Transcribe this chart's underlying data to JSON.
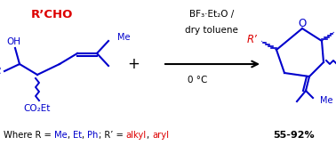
{
  "bg_color": "#ffffff",
  "fig_width": 3.78,
  "fig_height": 1.63,
  "dpi": 100,
  "color_blue": "#0000cc",
  "color_red": "#dd0000",
  "color_black": "#000000",
  "reagent_line1": "BF₃·Et₂O /",
  "reagent_line2": "dry toluene",
  "reagent_line3": "0 °C",
  "aldehyde_label": "R’CHO",
  "yield_text": "55-92%",
  "bottom_text_parts": [
    {
      "text": "Where R = ",
      "color": "black"
    },
    {
      "text": "Me",
      "color": "blue"
    },
    {
      "text": ", ",
      "color": "black"
    },
    {
      "text": "Et",
      "color": "blue"
    },
    {
      "text": ", ",
      "color": "black"
    },
    {
      "text": "Ph",
      "color": "blue"
    },
    {
      "text": "; R’ = ",
      "color": "black"
    },
    {
      "text": "alkyl",
      "color": "red"
    },
    {
      "text": ", ",
      "color": "black"
    },
    {
      "text": "aryl",
      "color": "red"
    }
  ]
}
